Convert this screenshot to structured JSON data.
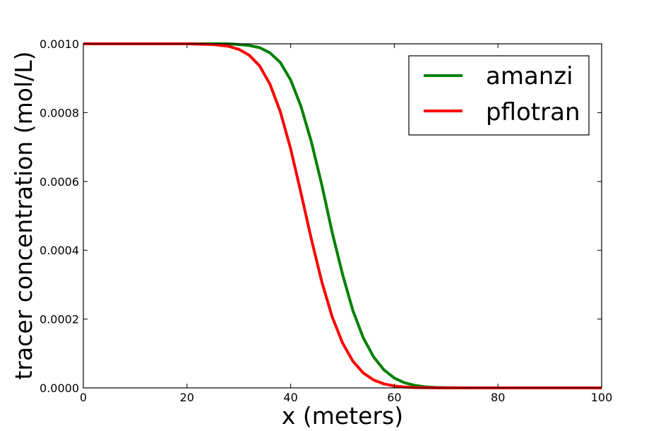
{
  "chart_data": {
    "type": "line",
    "xlabel": "x (meters)",
    "ylabel": "tracer concentration (mol/L)",
    "xlim": [
      0,
      100
    ],
    "ylim": [
      0,
      0.001
    ],
    "xticks": [
      0,
      20,
      40,
      60,
      80,
      100
    ],
    "xtick_labels": [
      "0",
      "20",
      "40",
      "60",
      "80",
      "100"
    ],
    "yticks": [
      0,
      0.0002,
      0.0004,
      0.0006,
      0.0008,
      0.001
    ],
    "ytick_labels": [
      "0.0000",
      "0.0002",
      "0.0004",
      "0.0006",
      "0.0008",
      "0.0010"
    ],
    "grid": false,
    "legend_position": "top-right",
    "x": [
      0,
      5,
      10,
      15,
      20,
      25,
      28,
      30,
      32,
      34,
      36,
      38,
      40,
      42,
      44,
      46,
      48,
      50,
      52,
      54,
      56,
      58,
      60,
      62,
      64,
      66,
      68,
      70,
      75,
      80,
      85,
      90,
      95,
      100
    ],
    "series": [
      {
        "name": "amanzi",
        "color": "#008000",
        "values": [
          0.001,
          0.001,
          0.001,
          0.001,
          0.001,
          0.001,
          0.001,
          0.000998,
          0.000995,
          0.000989,
          0.000974,
          0.000946,
          0.000895,
          0.000818,
          0.000715,
          0.000591,
          0.000453,
          0.000331,
          0.000225,
          0.000146,
          9.02e-05,
          5.24e-05,
          2.87e-05,
          1.47e-05,
          7.1e-06,
          3.2e-06,
          1.4e-06,
          6e-07,
          1e-07,
          0,
          0,
          0,
          0,
          0
        ]
      },
      {
        "name": "pflotran",
        "color": "#ff0000",
        "values": [
          0.001,
          0.001,
          0.001,
          0.001,
          0.001,
          0.000998,
          0.000993,
          0.000984,
          0.000967,
          0.000936,
          0.000883,
          0.000803,
          0.000695,
          0.000566,
          0.000432,
          0.000309,
          0.000207,
          0.000131,
          7.78e-05,
          4.36e-05,
          2.31e-05,
          1.16e-05,
          5.5e-06,
          2.5e-06,
          1.1e-06,
          5e-07,
          2e-07,
          1e-07,
          0,
          0,
          0,
          0,
          0,
          0
        ]
      }
    ]
  }
}
